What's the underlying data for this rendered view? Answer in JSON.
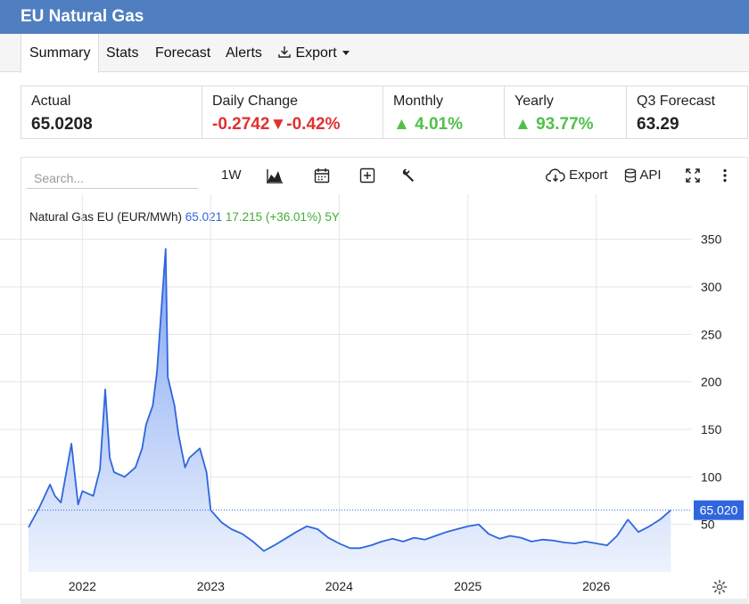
{
  "header": {
    "title": "EU Natural Gas"
  },
  "nav": {
    "tabs": [
      {
        "label": "Summary",
        "active": true
      },
      {
        "label": "Stats"
      },
      {
        "label": "Forecast"
      },
      {
        "label": "Alerts"
      }
    ],
    "export_label": "Export"
  },
  "stats": [
    {
      "label": "Actual",
      "value": "65.0208"
    },
    {
      "label": "Daily Change",
      "value": "-0.2742",
      "value2": "-0.42%"
    },
    {
      "label": "Monthly",
      "value": "4.01%"
    },
    {
      "label": "Yearly",
      "value": "93.77%"
    },
    {
      "label": "Q3 Forecast",
      "value": "63.29"
    }
  ],
  "toolbar": {
    "search_placeholder": "Search...",
    "range": "1W",
    "export_label": "Export",
    "api_label": "API"
  },
  "series_label": {
    "name": "Natural Gas EU (EUR/MWh)",
    "price": "65.021",
    "change": "17.215 (+36.01%)",
    "period": "5Y"
  },
  "colors": {
    "line": "#2f66dd",
    "area_top": "#7ea3f2",
    "area_bottom": "#eef3fd",
    "negative": "#e03131",
    "positive": "#51c04a",
    "header": "#4f7fc1"
  },
  "chart_data": {
    "type": "area",
    "x": [
      "2021-08",
      "2021-09",
      "2021-10",
      "2021-10-15",
      "2021-11",
      "2021-12",
      "2021-12-20",
      "2022-01",
      "2022-02",
      "2022-02-20",
      "2022-03-07",
      "2022-03-20",
      "2022-04",
      "2022-05",
      "2022-06",
      "2022-06-20",
      "2022-07",
      "2022-07-20",
      "2022-08",
      "2022-08-26",
      "2022-09",
      "2022-09-20",
      "2022-10",
      "2022-10-20",
      "2022-11",
      "2022-12",
      "2022-12-20",
      "2023-01",
      "2023-02",
      "2023-03",
      "2023-04",
      "2023-05",
      "2023-06",
      "2023-07",
      "2023-08",
      "2023-09",
      "2023-10",
      "2023-11",
      "2023-12",
      "2024-01",
      "2024-02",
      "2024-03",
      "2024-04",
      "2024-05",
      "2024-06",
      "2024-07",
      "2024-08",
      "2024-09",
      "2024-10",
      "2024-11",
      "2024-12",
      "2025-01",
      "2025-02",
      "2025-03",
      "2025-04",
      "2025-05",
      "2025-06",
      "2025-07",
      "2025-08",
      "2025-09",
      "2025-10",
      "2025-11",
      "2025-12",
      "2026-01",
      "2026-02",
      "2026-03",
      "2026-04",
      "2026-05",
      "2026-06",
      "2026-07",
      "2026-08"
    ],
    "values": [
      47,
      68,
      92,
      80,
      73,
      135,
      71,
      85,
      80,
      108,
      192,
      120,
      105,
      100,
      110,
      130,
      155,
      175,
      210,
      340,
      205,
      175,
      145,
      110,
      120,
      130,
      105,
      65,
      52,
      45,
      40,
      32,
      22,
      28,
      35,
      42,
      48,
      45,
      36,
      30,
      25,
      25,
      28,
      32,
      35,
      32,
      36,
      34,
      38,
      42,
      45,
      48,
      50,
      40,
      35,
      38,
      36,
      32,
      34,
      33,
      31,
      30,
      32,
      30,
      28,
      38,
      55,
      42,
      48,
      55,
      65
    ],
    "xlabel": "",
    "ylabel": "",
    "ylim": [
      0,
      360
    ],
    "y_ticks": [
      50,
      100,
      150,
      200,
      250,
      300,
      350
    ],
    "x_ticks": [
      "2022",
      "2023",
      "2024",
      "2025",
      "2026"
    ],
    "last_value_label": "65.020",
    "grid": true
  }
}
